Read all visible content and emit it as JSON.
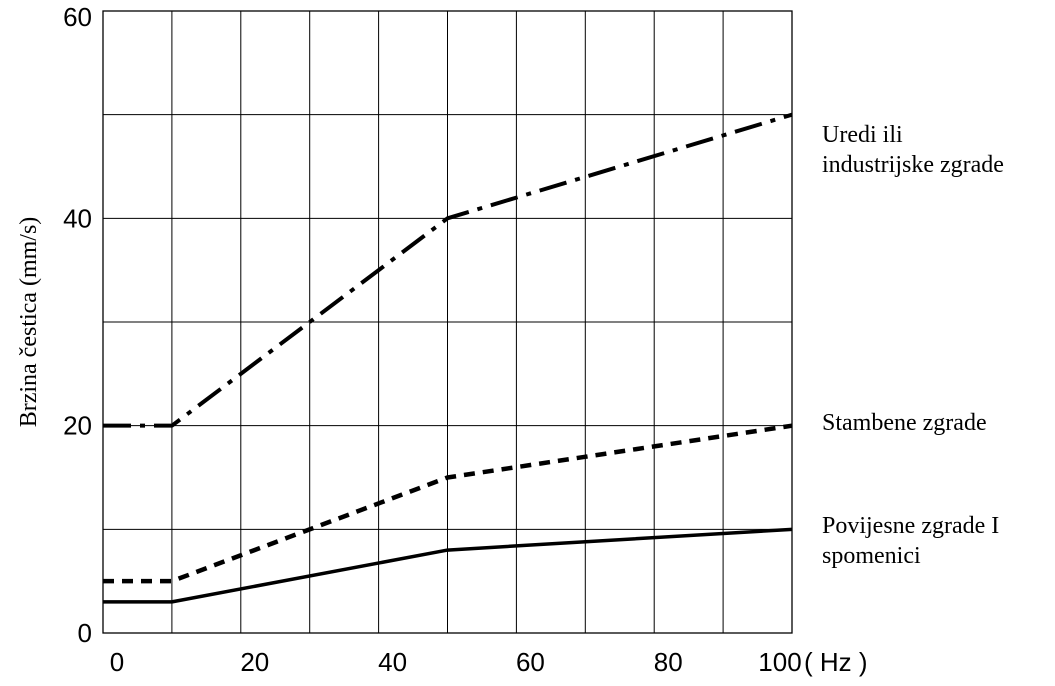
{
  "chart_data": {
    "type": "line",
    "title": "",
    "xlabel": "",
    "ylabel": "Brzina čestica (mm/s)",
    "x_unit": "( Hz )",
    "xlim": [
      0,
      100
    ],
    "ylim": [
      0,
      60
    ],
    "x_ticks": [
      0,
      20,
      40,
      60,
      80,
      100
    ],
    "y_ticks": [
      0,
      20,
      40,
      60
    ],
    "grid": true,
    "series": [
      {
        "name_lines": [
          "Uredi ili",
          "industrijske zgrade"
        ],
        "style": "dash-dot",
        "x": [
          0,
          10,
          50,
          100
        ],
        "y": [
          20,
          20,
          40,
          50
        ]
      },
      {
        "name_lines": [
          "Stambene zgrade"
        ],
        "style": "dotted",
        "x": [
          0,
          10,
          50,
          100
        ],
        "y": [
          5,
          5,
          15,
          20
        ]
      },
      {
        "name_lines": [
          "Povijesne zgrade I",
          "spomenici"
        ],
        "style": "solid",
        "x": [
          0,
          10,
          50,
          100
        ],
        "y": [
          3,
          3,
          8,
          10
        ]
      }
    ]
  }
}
